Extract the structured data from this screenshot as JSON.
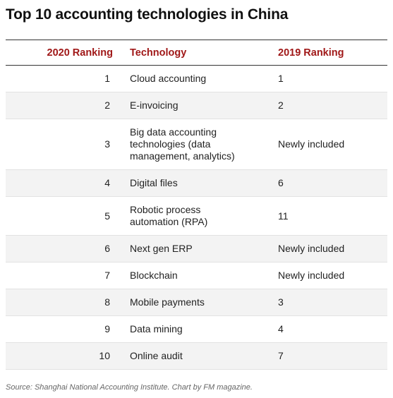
{
  "title": "Top 10 accounting technologies in China",
  "columns": {
    "rank_2020": "2020 Ranking",
    "technology": "Technology",
    "rank_2019": "2019 Ranking"
  },
  "rows": [
    {
      "rank_2020": "1",
      "technology": "Cloud accounting",
      "rank_2019": "1"
    },
    {
      "rank_2020": "2",
      "technology": "E-invoicing",
      "rank_2019": "2"
    },
    {
      "rank_2020": "3",
      "technology": "Big data accounting technologies (data management, analytics)",
      "rank_2019": "Newly included"
    },
    {
      "rank_2020": "4",
      "technology": "Digital files",
      "rank_2019": "6"
    },
    {
      "rank_2020": "5",
      "technology": "Robotic process automation (RPA)",
      "rank_2019": "11"
    },
    {
      "rank_2020": "6",
      "technology": "Next gen ERP",
      "rank_2019": "Newly included"
    },
    {
      "rank_2020": "7",
      "technology": "Blockchain",
      "rank_2019": "Newly included"
    },
    {
      "rank_2020": "8",
      "technology": "Mobile payments",
      "rank_2019": "3"
    },
    {
      "rank_2020": "9",
      "technology": "Data mining",
      "rank_2019": "4"
    },
    {
      "rank_2020": "10",
      "technology": "Online audit",
      "rank_2019": "7"
    }
  ],
  "source": "Source: Shanghai National Accounting Institute. Chart by FM magazine.",
  "colors": {
    "header_text": "#a01818",
    "stripe": "#f3f3f3"
  }
}
